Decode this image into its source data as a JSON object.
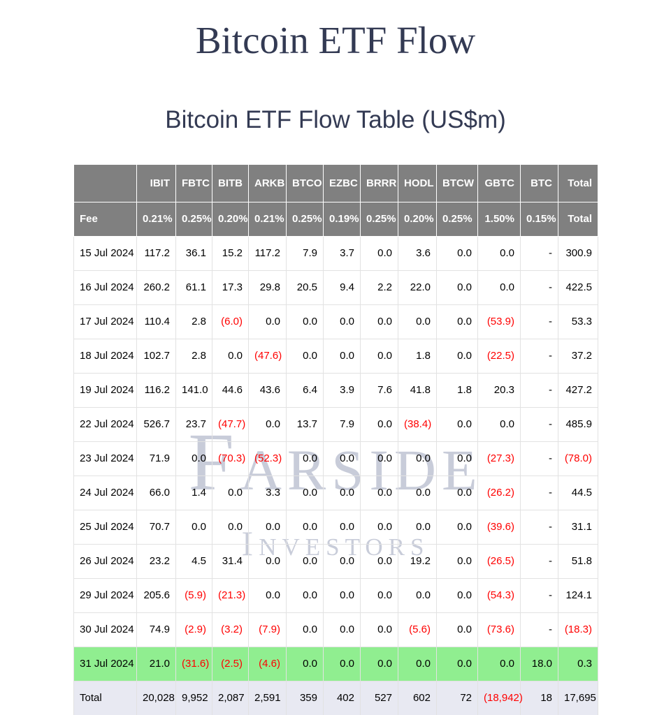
{
  "page": {
    "title": "Bitcoin ETF Flow",
    "subtitle": "Bitcoin ETF Flow Table (US$m)"
  },
  "watermark": {
    "line1": "Farside",
    "line2": "Investors"
  },
  "colors": {
    "title_text": "#333a53",
    "header_bg": "#808080",
    "header_text": "#ffffff",
    "negative_text": "#ff0000",
    "highlight_row_bg": "#90ee90",
    "total_row_bg": "#e8e9f2",
    "watermark_text": "#c8ccd9"
  },
  "chart_data": {
    "type": "table",
    "title": "Bitcoin ETF Flow Table (US$m)",
    "columns": [
      "",
      "IBIT",
      "FBTC",
      "BITB",
      "ARKB",
      "BTCO",
      "EZBC",
      "BRRR",
      "HODL",
      "BTCW",
      "GBTC",
      "BTC",
      "Total"
    ],
    "fee_row": {
      "label": "Fee",
      "values": [
        "0.21%",
        "0.25%",
        "0.20%",
        "0.21%",
        "0.25%",
        "0.19%",
        "0.25%",
        "0.20%",
        "0.25%",
        "1.50%",
        "0.15%",
        "Total"
      ]
    },
    "rows": [
      {
        "date": "15 Jul 2024",
        "highlight": false,
        "values": [
          "117.2",
          "36.1",
          "15.2",
          "117.2",
          "7.9",
          "3.7",
          "0.0",
          "3.6",
          "0.0",
          "0.0",
          "-",
          "300.9"
        ]
      },
      {
        "date": "16 Jul 2024",
        "highlight": false,
        "values": [
          "260.2",
          "61.1",
          "17.3",
          "29.8",
          "20.5",
          "9.4",
          "2.2",
          "22.0",
          "0.0",
          "0.0",
          "-",
          "422.5"
        ]
      },
      {
        "date": "17 Jul 2024",
        "highlight": false,
        "values": [
          "110.4",
          "2.8",
          "(6.0)",
          "0.0",
          "0.0",
          "0.0",
          "0.0",
          "0.0",
          "0.0",
          "(53.9)",
          "-",
          "53.3"
        ]
      },
      {
        "date": "18 Jul 2024",
        "highlight": false,
        "values": [
          "102.7",
          "2.8",
          "0.0",
          "(47.6)",
          "0.0",
          "0.0",
          "0.0",
          "1.8",
          "0.0",
          "(22.5)",
          "-",
          "37.2"
        ]
      },
      {
        "date": "19 Jul 2024",
        "highlight": false,
        "values": [
          "116.2",
          "141.0",
          "44.6",
          "43.6",
          "6.4",
          "3.9",
          "7.6",
          "41.8",
          "1.8",
          "20.3",
          "-",
          "427.2"
        ]
      },
      {
        "date": "22 Jul 2024",
        "highlight": false,
        "values": [
          "526.7",
          "23.7",
          "(47.7)",
          "0.0",
          "13.7",
          "7.9",
          "0.0",
          "(38.4)",
          "0.0",
          "0.0",
          "-",
          "485.9"
        ]
      },
      {
        "date": "23 Jul 2024",
        "highlight": false,
        "values": [
          "71.9",
          "0.0",
          "(70.3)",
          "(52.3)",
          "0.0",
          "0.0",
          "0.0",
          "0.0",
          "0.0",
          "(27.3)",
          "-",
          "(78.0)"
        ]
      },
      {
        "date": "24 Jul 2024",
        "highlight": false,
        "values": [
          "66.0",
          "1.4",
          "0.0",
          "3.3",
          "0.0",
          "0.0",
          "0.0",
          "0.0",
          "0.0",
          "(26.2)",
          "-",
          "44.5"
        ]
      },
      {
        "date": "25 Jul 2024",
        "highlight": false,
        "values": [
          "70.7",
          "0.0",
          "0.0",
          "0.0",
          "0.0",
          "0.0",
          "0.0",
          "0.0",
          "0.0",
          "(39.6)",
          "-",
          "31.1"
        ]
      },
      {
        "date": "26 Jul 2024",
        "highlight": false,
        "values": [
          "23.2",
          "4.5",
          "31.4",
          "0.0",
          "0.0",
          "0.0",
          "0.0",
          "19.2",
          "0.0",
          "(26.5)",
          "-",
          "51.8"
        ]
      },
      {
        "date": "29 Jul 2024",
        "highlight": false,
        "values": [
          "205.6",
          "(5.9)",
          "(21.3)",
          "0.0",
          "0.0",
          "0.0",
          "0.0",
          "0.0",
          "0.0",
          "(54.3)",
          "-",
          "124.1"
        ]
      },
      {
        "date": "30 Jul 2024",
        "highlight": false,
        "values": [
          "74.9",
          "(2.9)",
          "(3.2)",
          "(7.9)",
          "0.0",
          "0.0",
          "0.0",
          "(5.6)",
          "0.0",
          "(73.6)",
          "-",
          "(18.3)"
        ]
      },
      {
        "date": "31 Jul 2024",
        "highlight": true,
        "values": [
          "21.0",
          "(31.6)",
          "(2.5)",
          "(4.6)",
          "0.0",
          "0.0",
          "0.0",
          "0.0",
          "0.0",
          "0.0",
          "18.0",
          "0.3"
        ]
      }
    ],
    "total_row": {
      "label": "Total",
      "values": [
        "20,028",
        "9,952",
        "2,087",
        "2,591",
        "359",
        "402",
        "527",
        "602",
        "72",
        "(18,942)",
        "18",
        "17,695"
      ]
    }
  }
}
